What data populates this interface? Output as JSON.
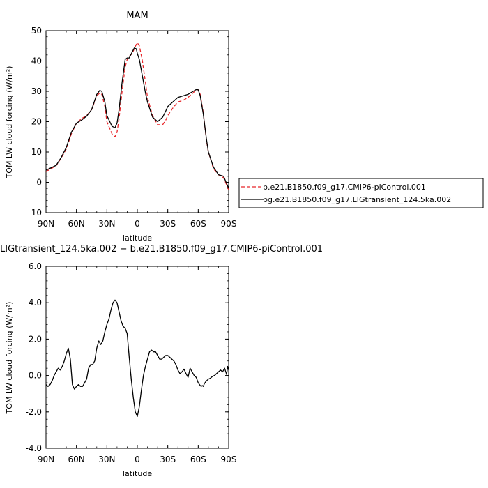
{
  "chart_data": [
    {
      "type": "line",
      "title": "MAM",
      "xlabel": "latitude",
      "ylabel": "TOM  LW  cloud  forcing  (W/m²)",
      "x_ticks": [
        90,
        60,
        30,
        0,
        -30,
        -60,
        -90
      ],
      "x_tick_labels": [
        "90N",
        "60N",
        "30N",
        "0",
        "30S",
        "60S",
        "90S"
      ],
      "xlim": [
        90,
        -90
      ],
      "ylim": [
        -10,
        50
      ],
      "y_ticks": [
        -10,
        0,
        10,
        20,
        30,
        40,
        50
      ],
      "y_tick_labels": [
        "-10",
        "0",
        "10",
        "20",
        "30",
        "40",
        "50"
      ],
      "legend": {
        "placement": "outside-right",
        "entries": [
          {
            "label": "b.e21.B1850.f09_g17.CMIP6-piControl.001",
            "color": "#e8262a",
            "dash": "dashed"
          },
          {
            "label": "bg.e21.B1850.f09_g17.LIGtransient_124.5ka.002",
            "color": "#000000",
            "dash": "solid"
          }
        ]
      },
      "series": [
        {
          "name": "b.e21.B1850.f09_g17.CMIP6-piControl.001",
          "color": "#e8262a",
          "x": [
            90,
            85,
            80,
            75,
            70,
            65,
            60,
            55,
            50,
            45,
            40,
            37,
            35,
            32,
            30,
            25,
            22,
            20,
            18,
            15,
            12,
            10,
            8,
            5,
            3,
            1,
            0,
            -2,
            -5,
            -8,
            -10,
            -15,
            -20,
            -25,
            -28,
            -30,
            -35,
            -40,
            -45,
            -50,
            -55,
            -58,
            -60,
            -62,
            -65,
            -68,
            -70,
            -75,
            -80,
            -85,
            -90
          ],
          "y": [
            3.5,
            4.5,
            5.5,
            8.0,
            11.0,
            16.0,
            19.5,
            21.0,
            22.0,
            24.0,
            28.5,
            29.5,
            29.0,
            25.0,
            20.0,
            16.0,
            15.0,
            16.5,
            21.0,
            30.0,
            38.0,
            40.5,
            41.5,
            42.5,
            44.0,
            45.5,
            46.0,
            45.0,
            40.0,
            33.0,
            28.0,
            22.0,
            19.0,
            19.0,
            20.5,
            22.0,
            24.5,
            26.5,
            27.0,
            28.0,
            29.5,
            30.5,
            30.5,
            29.0,
            23.0,
            14.0,
            10.0,
            4.5,
            2.5,
            1.5,
            -2.5
          ]
        },
        {
          "name": "bg.e21.B1850.f09_g17.LIGtransient_124.5ka.002",
          "color": "#000000",
          "x": [
            90,
            85,
            80,
            75,
            70,
            65,
            60,
            55,
            50,
            45,
            40,
            37,
            35,
            32,
            30,
            25,
            22,
            20,
            18,
            15,
            12,
            10,
            8,
            5,
            3,
            1,
            0,
            -2,
            -5,
            -8,
            -10,
            -15,
            -20,
            -25,
            -28,
            -30,
            -35,
            -40,
            -45,
            -50,
            -55,
            -58,
            -60,
            -62,
            -65,
            -68,
            -70,
            -75,
            -80,
            -85,
            -90
          ],
          "y": [
            4.0,
            4.8,
            5.6,
            8.2,
            11.5,
            16.5,
            19.5,
            20.5,
            21.8,
            24.0,
            29.0,
            30.3,
            30.0,
            26.5,
            22.0,
            18.5,
            18.0,
            19.5,
            24.0,
            33.0,
            40.5,
            41.0,
            41.0,
            43.0,
            44.3,
            44.0,
            42.5,
            40.5,
            35.0,
            29.5,
            26.5,
            21.5,
            20.0,
            21.5,
            23.5,
            25.0,
            26.5,
            28.0,
            28.5,
            29.0,
            30.0,
            30.6,
            30.5,
            28.5,
            22.5,
            14.5,
            10.0,
            5.0,
            2.5,
            2.0,
            -2.0
          ]
        }
      ]
    },
    {
      "type": "line",
      "title": "LIGtransient_124.5ka.002  −  b.e21.B1850.f09_g17.CMIP6-piControl.001",
      "xlabel": "latitude",
      "ylabel": "TOM  LW  cloud  forcing  (W/m²)",
      "x_ticks": [
        90,
        60,
        30,
        0,
        -30,
        -60,
        -90
      ],
      "x_tick_labels": [
        "90N",
        "60N",
        "30N",
        "0",
        "30S",
        "60S",
        "90S"
      ],
      "xlim": [
        90,
        -90
      ],
      "ylim": [
        -4,
        6
      ],
      "y_ticks": [
        -4,
        -2,
        0,
        2,
        4,
        6
      ],
      "y_tick_labels": [
        "-4.0",
        "-2.0",
        "0.0",
        "2.0",
        "4.0",
        "6.0"
      ],
      "series": [
        {
          "color": "#000000",
          "x": [
            90,
            88,
            86,
            84,
            82,
            80,
            78,
            76,
            74,
            72,
            70,
            68,
            66,
            65,
            64,
            62,
            60,
            58,
            56,
            54,
            52,
            50,
            48,
            46,
            44,
            42,
            40,
            38,
            36,
            34,
            32,
            30,
            28,
            26,
            24,
            22,
            20,
            18,
            16,
            14,
            12,
            10,
            8,
            6,
            4,
            2,
            0,
            -2,
            -4,
            -6,
            -8,
            -10,
            -12,
            -14,
            -16,
            -18,
            -20,
            -22,
            -24,
            -26,
            -28,
            -30,
            -32,
            -34,
            -36,
            -38,
            -40,
            -42,
            -44,
            -46,
            -48,
            -50,
            -52,
            -54,
            -56,
            -58,
            -60,
            -62,
            -63,
            -64,
            -65,
            -66,
            -68,
            -70,
            -72,
            -74,
            -76,
            -78,
            -80,
            -82,
            -84,
            -86,
            -88,
            -89,
            -90
          ],
          "y": [
            -0.5,
            -0.6,
            -0.5,
            -0.3,
            0.0,
            0.2,
            0.4,
            0.3,
            0.5,
            0.8,
            1.2,
            1.5,
            0.9,
            0.2,
            -0.5,
            -0.75,
            -0.6,
            -0.5,
            -0.6,
            -0.6,
            -0.4,
            -0.2,
            0.4,
            0.6,
            0.6,
            0.8,
            1.5,
            1.9,
            1.7,
            1.9,
            2.4,
            2.8,
            3.1,
            3.6,
            4.0,
            4.15,
            4.0,
            3.5,
            3.0,
            2.7,
            2.6,
            2.3,
            1.0,
            -0.2,
            -1.2,
            -2.0,
            -2.25,
            -1.7,
            -0.8,
            0.0,
            0.5,
            0.9,
            1.3,
            1.4,
            1.3,
            1.3,
            1.1,
            0.9,
            0.9,
            1.0,
            1.1,
            1.1,
            1.0,
            0.9,
            0.8,
            0.6,
            0.3,
            0.1,
            0.2,
            0.35,
            0.1,
            -0.1,
            0.4,
            0.2,
            0.0,
            -0.1,
            -0.4,
            -0.55,
            -0.6,
            -0.55,
            -0.6,
            -0.45,
            -0.3,
            -0.2,
            -0.15,
            -0.05,
            0.0,
            0.1,
            0.2,
            0.3,
            0.2,
            0.4,
            0.05,
            0.5,
            0.3
          ]
        }
      ]
    }
  ]
}
